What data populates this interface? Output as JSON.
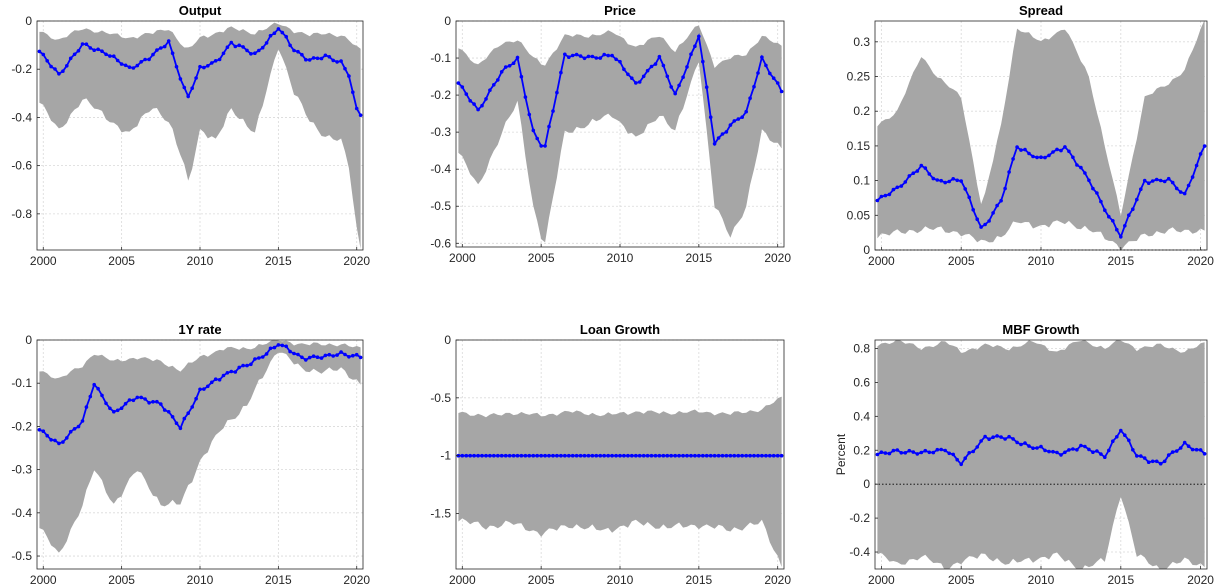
{
  "chart_data": [
    {
      "type": "area",
      "title": "Output",
      "ylabel": "",
      "xlim": [
        1999.6,
        2020.4
      ],
      "ylim": [
        -0.95,
        0
      ],
      "x_ticks": [
        2000,
        2005,
        2010,
        2015,
        2020
      ],
      "y_ticks": [
        0,
        -0.2,
        -0.4,
        -0.6,
        -0.8
      ],
      "y_tick_labels": [
        "0",
        "-0.2",
        "-0.4",
        "-0.6",
        "-0.8"
      ],
      "grid": true,
      "zero_line": false,
      "x_knots": [
        1999.75,
        2001,
        2002.5,
        2004,
        2005.5,
        2007,
        2008,
        2009,
        2009.25,
        2010,
        2011,
        2012,
        2013.5,
        2015,
        2016,
        2017,
        2018,
        2019,
        2019.5,
        2020,
        2020.25
      ],
      "median_knots": [
        -0.13,
        -0.22,
        -0.1,
        -0.13,
        -0.2,
        -0.14,
        -0.09,
        -0.28,
        -0.31,
        -0.2,
        -0.17,
        -0.09,
        -0.14,
        -0.03,
        -0.12,
        -0.16,
        -0.15,
        -0.17,
        -0.22,
        -0.37,
        -0.39
      ],
      "lower_knots": [
        -0.33,
        -0.46,
        -0.32,
        -0.4,
        -0.47,
        -0.35,
        -0.42,
        -0.6,
        -0.67,
        -0.45,
        -0.5,
        -0.36,
        -0.47,
        -0.1,
        -0.3,
        -0.41,
        -0.48,
        -0.5,
        -0.6,
        -0.86,
        -0.94
      ],
      "upper_knots": [
        -0.04,
        -0.08,
        -0.03,
        -0.05,
        -0.07,
        -0.05,
        -0.03,
        -0.11,
        -0.12,
        -0.07,
        -0.05,
        -0.03,
        -0.05,
        -0.01,
        -0.04,
        -0.06,
        -0.05,
        -0.06,
        -0.08,
        -0.11,
        -0.12
      ]
    },
    {
      "type": "area",
      "title": "Price",
      "ylabel": "",
      "xlim": [
        1999.6,
        2020.4
      ],
      "ylim": [
        -0.61,
        0
      ],
      "x_ticks": [
        2000,
        2005,
        2010,
        2015,
        2020
      ],
      "y_ticks": [
        0,
        -0.1,
        -0.2,
        -0.3,
        -0.4,
        -0.5,
        -0.6
      ],
      "y_tick_labels": [
        "0",
        "-0.1",
        "-0.2",
        "-0.3",
        "-0.4",
        "-0.5",
        "-0.6"
      ],
      "grid": true,
      "zero_line": false,
      "x_knots": [
        1999.75,
        2001,
        2002.5,
        2003.5,
        2004.5,
        2005.2,
        2006.5,
        2008,
        2009.5,
        2011,
        2012.5,
        2013.5,
        2015,
        2016,
        2017,
        2018,
        2019,
        2020.25
      ],
      "median_knots": [
        -0.17,
        -0.24,
        -0.14,
        -0.1,
        -0.3,
        -0.35,
        -0.09,
        -0.1,
        -0.09,
        -0.17,
        -0.1,
        -0.2,
        -0.04,
        -0.33,
        -0.28,
        -0.25,
        -0.1,
        -0.19
      ],
      "lower_knots": [
        -0.35,
        -0.45,
        -0.3,
        -0.22,
        -0.5,
        -0.61,
        -0.3,
        -0.28,
        -0.25,
        -0.32,
        -0.25,
        -0.3,
        -0.1,
        -0.5,
        -0.58,
        -0.5,
        -0.3,
        -0.34
      ],
      "upper_knots": [
        -0.07,
        -0.12,
        -0.06,
        -0.05,
        -0.1,
        -0.12,
        -0.04,
        -0.04,
        -0.03,
        -0.07,
        -0.04,
        -0.08,
        -0.01,
        -0.12,
        -0.1,
        -0.09,
        -0.04,
        -0.07
      ]
    },
    {
      "type": "area",
      "title": "Spread",
      "ylabel": "",
      "xlim": [
        1999.6,
        2020.4
      ],
      "ylim": [
        0,
        0.33
      ],
      "x_ticks": [
        2000,
        2005,
        2010,
        2015,
        2020
      ],
      "y_ticks": [
        0,
        0.05,
        0.1,
        0.15,
        0.2,
        0.25,
        0.3
      ],
      "y_tick_labels": [
        "0",
        "0.05",
        "0.1",
        "0.15",
        "0.2",
        "0.25",
        "0.3"
      ],
      "grid": true,
      "zero_line": true,
      "x_knots": [
        1999.75,
        2001,
        2002.5,
        2003.5,
        2005,
        2006.3,
        2007.5,
        2008.5,
        2010,
        2011.5,
        2013,
        2015,
        2016.5,
        2018,
        2019,
        2020.25
      ],
      "median_knots": [
        0.07,
        0.09,
        0.12,
        0.1,
        0.1,
        0.03,
        0.07,
        0.15,
        0.13,
        0.15,
        0.1,
        0.02,
        0.1,
        0.1,
        0.08,
        0.15
      ],
      "lower_knots": [
        0.02,
        0.025,
        0.03,
        0.03,
        0.025,
        0.01,
        0.02,
        0.04,
        0.035,
        0.04,
        0.03,
        0.005,
        0.02,
        0.03,
        0.025,
        0.03
      ],
      "upper_knots": [
        0.18,
        0.2,
        0.28,
        0.25,
        0.22,
        0.06,
        0.18,
        0.32,
        0.3,
        0.32,
        0.25,
        0.05,
        0.22,
        0.24,
        0.26,
        0.33
      ]
    },
    {
      "type": "area",
      "title": "1Y rate",
      "ylabel": "",
      "xlim": [
        1999.6,
        2020.4
      ],
      "ylim": [
        -0.53,
        0
      ],
      "x_ticks": [
        2000,
        2005,
        2010,
        2015,
        2020
      ],
      "y_ticks": [
        0,
        -0.1,
        -0.2,
        -0.3,
        -0.4,
        -0.5
      ],
      "y_tick_labels": [
        "0",
        "-0.1",
        "-0.2",
        "-0.3",
        "-0.4",
        "-0.5"
      ],
      "grid": true,
      "zero_line": false,
      "x_knots": [
        1999.75,
        2001,
        2002.5,
        2003.25,
        2004.5,
        2006,
        2007.5,
        2008.75,
        2010,
        2011.5,
        2013,
        2015,
        2016.5,
        2018,
        2019,
        2020.25
      ],
      "median_knots": [
        -0.21,
        -0.24,
        -0.19,
        -0.1,
        -0.17,
        -0.13,
        -0.15,
        -0.2,
        -0.12,
        -0.08,
        -0.06,
        -0.01,
        -0.04,
        -0.04,
        -0.03,
        -0.04
      ],
      "lower_knots": [
        -0.43,
        -0.5,
        -0.38,
        -0.3,
        -0.38,
        -0.3,
        -0.38,
        -0.38,
        -0.28,
        -0.2,
        -0.15,
        -0.02,
        -0.07,
        -0.07,
        -0.07,
        -0.1
      ],
      "upper_knots": [
        -0.07,
        -0.09,
        -0.06,
        -0.03,
        -0.05,
        -0.04,
        -0.05,
        -0.07,
        -0.04,
        -0.02,
        -0.02,
        0,
        -0.01,
        -0.01,
        -0.01,
        -0.02
      ]
    },
    {
      "type": "area",
      "title": "Loan Growth",
      "ylabel": "",
      "xlim": [
        1999.6,
        2020.4
      ],
      "ylim": [
        -1.98,
        0
      ],
      "x_ticks": [
        2000,
        2005,
        2010,
        2015,
        2020
      ],
      "y_ticks": [
        0,
        -0.5,
        -1,
        -1.5
      ],
      "y_tick_labels": [
        "0",
        "-0.5",
        "-1",
        "-1.5"
      ],
      "grid": true,
      "zero_line": false,
      "x_knots": [
        1999.75,
        2001.5,
        2003,
        2005,
        2007,
        2009,
        2011,
        2013,
        2015,
        2017,
        2019,
        2020.25
      ],
      "median_knots": [
        -1,
        -1,
        -1,
        -1,
        -1,
        -1,
        -1,
        -1,
        -1,
        -1,
        -1,
        -1
      ],
      "lower_knots": [
        -1.55,
        -1.62,
        -1.58,
        -1.67,
        -1.6,
        -1.65,
        -1.58,
        -1.62,
        -1.6,
        -1.64,
        -1.58,
        -1.95
      ],
      "upper_knots": [
        -0.62,
        -0.66,
        -0.63,
        -0.65,
        -0.62,
        -0.65,
        -0.62,
        -0.63,
        -0.62,
        -0.64,
        -0.6,
        -0.5
      ]
    },
    {
      "type": "area",
      "title": "MBF Growth",
      "ylabel": "Percent",
      "xlim": [
        1999.6,
        2020.4
      ],
      "ylim": [
        -0.5,
        0.85
      ],
      "x_ticks": [
        2000,
        2005,
        2010,
        2015,
        2020
      ],
      "y_ticks": [
        0.8,
        0.6,
        0.4,
        0.2,
        0,
        -0.2,
        -0.4
      ],
      "y_tick_labels": [
        "0.8",
        "0.6",
        "0.4",
        "0.2",
        "0",
        "-0.2",
        "-0.4"
      ],
      "grid": true,
      "zero_line": true,
      "x_knots": [
        1999.75,
        2001,
        2002.5,
        2004,
        2005,
        2006.5,
        2008,
        2009.5,
        2011,
        2012.5,
        2014,
        2015,
        2016,
        2017.5,
        2019,
        2020.25
      ],
      "median_knots": [
        0.17,
        0.2,
        0.18,
        0.21,
        0.12,
        0.28,
        0.27,
        0.22,
        0.18,
        0.22,
        0.17,
        0.32,
        0.17,
        0.12,
        0.24,
        0.18
      ],
      "lower_knots": [
        -0.4,
        -0.48,
        -0.42,
        -0.5,
        -0.45,
        -0.42,
        -0.47,
        -0.44,
        -0.42,
        -0.5,
        -0.45,
        -0.05,
        -0.42,
        -0.5,
        -0.45,
        -0.48
      ],
      "upper_knots": [
        0.82,
        0.85,
        0.8,
        0.84,
        0.78,
        0.82,
        0.8,
        0.84,
        0.78,
        0.85,
        0.8,
        0.85,
        0.8,
        0.82,
        0.78,
        0.83
      ]
    }
  ]
}
